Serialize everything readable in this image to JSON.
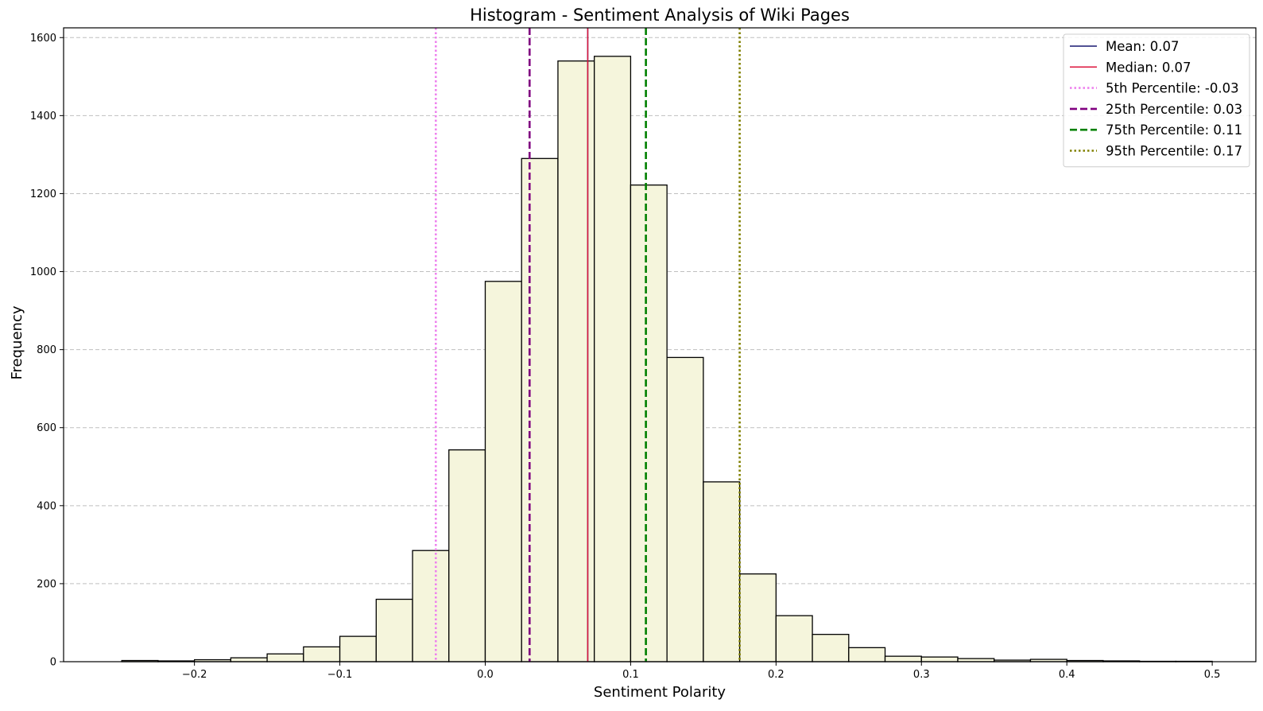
{
  "chart_data": {
    "type": "bar",
    "title": "Histogram - Sentiment Analysis of Wiki Pages",
    "xlabel": "Sentiment Polarity",
    "ylabel": "Frequency",
    "xlim": [
      -0.29,
      0.53
    ],
    "ylim": [
      0,
      1625
    ],
    "xticks": [
      -0.2,
      -0.1,
      0.0,
      0.1,
      0.2,
      0.3,
      0.4,
      0.5
    ],
    "xtick_labels": [
      "−0.2",
      "−0.1",
      "0.0",
      "0.1",
      "0.2",
      "0.3",
      "0.4",
      "0.5"
    ],
    "yticks": [
      0,
      200,
      400,
      600,
      800,
      1000,
      1200,
      1400,
      1600
    ],
    "ytick_labels": [
      "0",
      "200",
      "400",
      "600",
      "800",
      "1000",
      "1200",
      "1400",
      "1600"
    ],
    "grid": "y-dashed",
    "bar_color": "#f5f5dc",
    "bar_edge_color": "#000000",
    "bin_edges": [
      -0.25,
      -0.225,
      -0.2,
      -0.175,
      -0.15,
      -0.125,
      -0.1,
      -0.075,
      -0.05,
      -0.025,
      0.0,
      0.025,
      0.05,
      0.075,
      0.1,
      0.125,
      0.15,
      0.175,
      0.2,
      0.225,
      0.25,
      0.275,
      0.3,
      0.325,
      0.35,
      0.375,
      0.4,
      0.425,
      0.45,
      0.475,
      0.5
    ],
    "values": [
      3,
      2,
      5,
      10,
      20,
      38,
      65,
      160,
      285,
      543,
      975,
      1290,
      1540,
      1552,
      1222,
      780,
      461,
      225,
      118,
      70,
      36,
      14,
      12,
      8,
      4,
      6,
      3,
      2,
      1,
      1
    ],
    "reference_lines": [
      {
        "label": "Mean: 0.07",
        "x": 0.0705,
        "color": "#191970",
        "style": "solid"
      },
      {
        "label": "Median: 0.07",
        "x": 0.0705,
        "color": "#dc143c",
        "style": "solid"
      },
      {
        "label": "5th Percentile: -0.03",
        "x": -0.034,
        "color": "#ee82ee",
        "style": "dotted"
      },
      {
        "label": "25th Percentile: 0.03",
        "x": 0.0305,
        "color": "#800080",
        "style": "dashed"
      },
      {
        "label": "75th Percentile: 0.11",
        "x": 0.1105,
        "color": "#008000",
        "style": "dashed"
      },
      {
        "label": "95th Percentile: 0.17",
        "x": 0.175,
        "color": "#808000",
        "style": "dotted"
      }
    ],
    "legend_position": "top-right"
  }
}
